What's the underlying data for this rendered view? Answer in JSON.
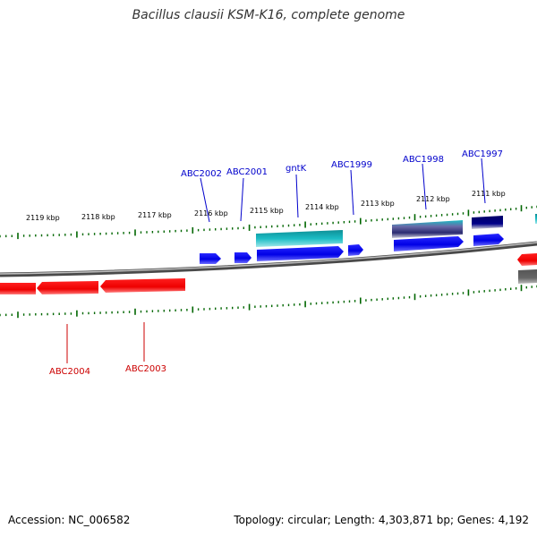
{
  "title": "Bacillus clausii KSM-K16, complete genome",
  "accession": "Accession: NC_006582",
  "summary": "Topology: circular; Length: 4,303,871 bp; Genes: 4,192",
  "colors": {
    "forward_gene": "#0000ee",
    "reverse_gene": "#ff0000",
    "forward_label": "#0000cc",
    "reverse_label": "#cc0000",
    "feature_teal": "#1bbcc4",
    "feature_navy": "#000077",
    "feature_gray": "#666666",
    "tick": "#006600",
    "backbone": "#777777"
  },
  "kbp_labels": [
    "2119 kbp",
    "2118 kbp",
    "2117 kbp",
    "2116 kbp",
    "2115 kbp",
    "2114 kbp",
    "2113 kbp",
    "2112 kbp",
    "2111 kbp"
  ],
  "forward_gene_labels": [
    "ABC2002",
    "ABC2001",
    "gntK",
    "ABC1999",
    "ABC1998",
    "ABC1997"
  ],
  "reverse_gene_labels": [
    "ABC2004",
    "ABC2003"
  ]
}
